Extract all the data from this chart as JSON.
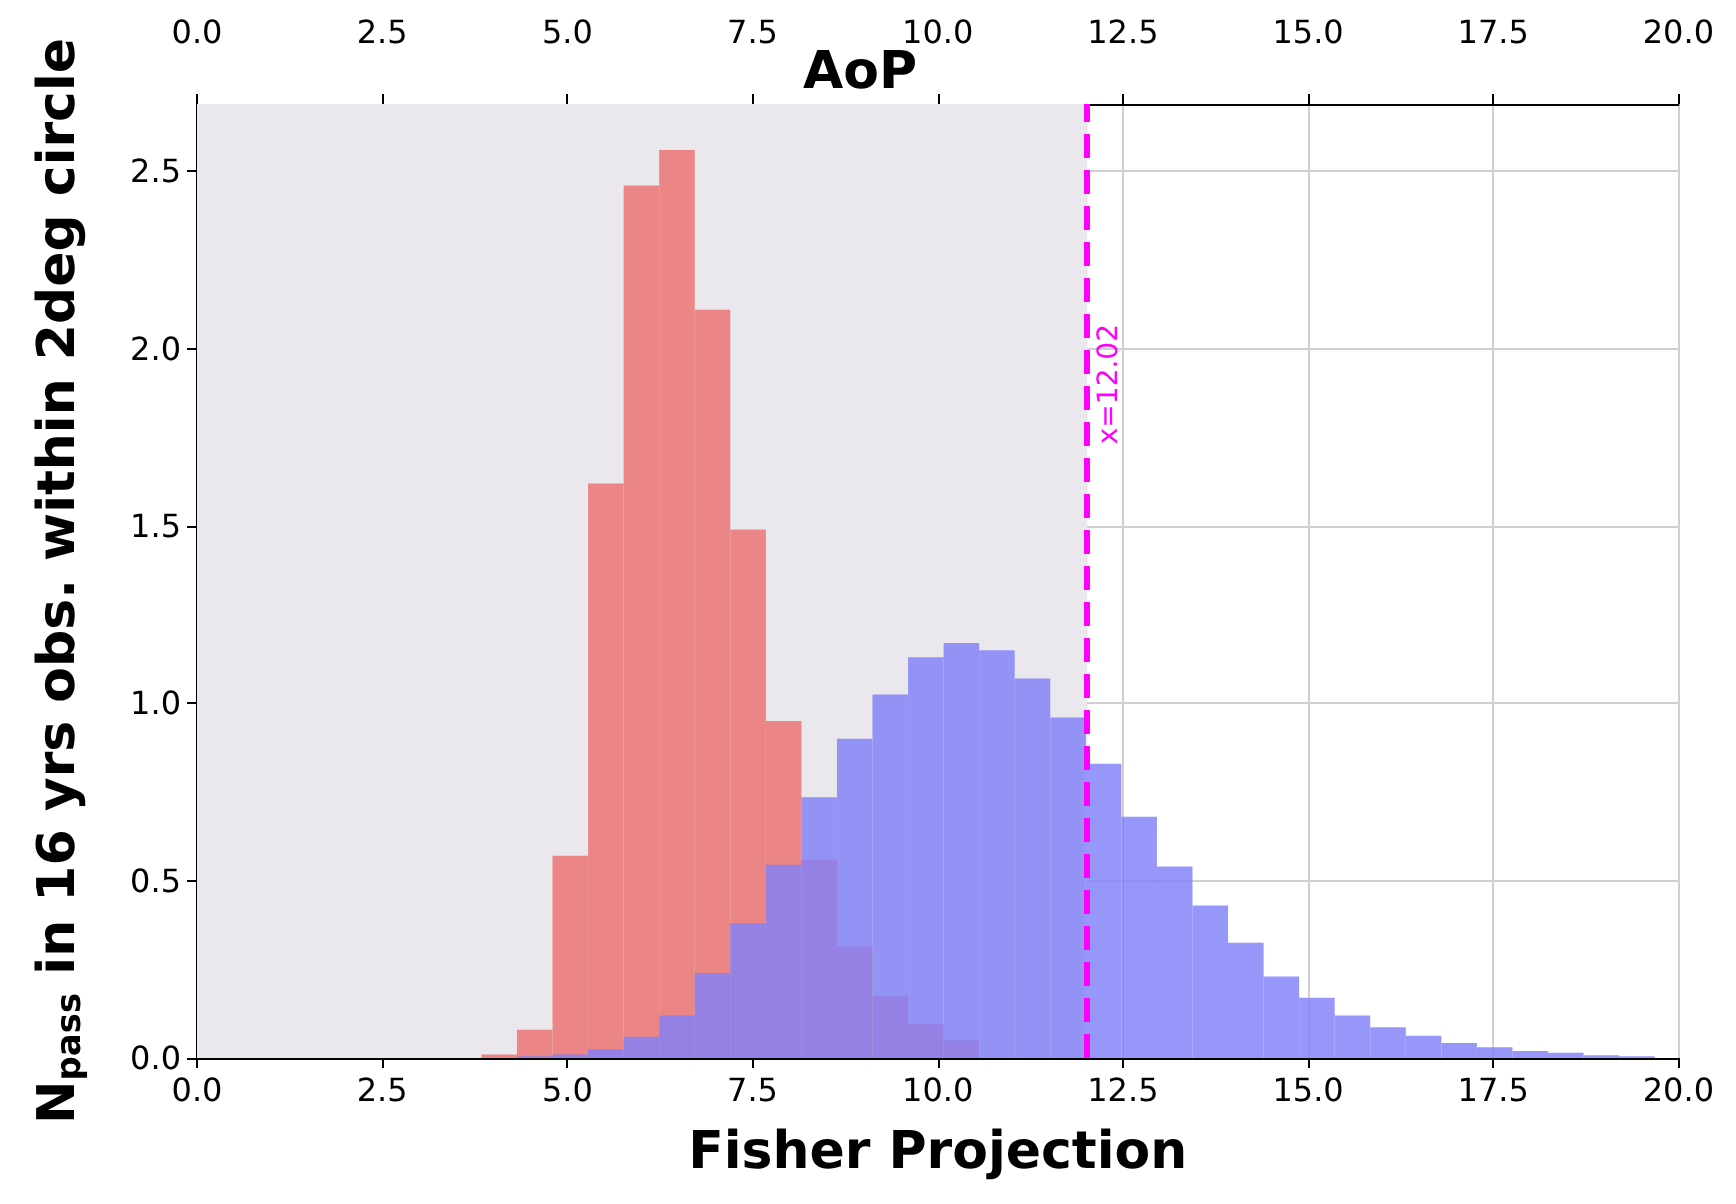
{
  "chart_data": {
    "type": "histogram",
    "title": "AoP",
    "xlabel": "Fisher Projection",
    "ylabel": "N$_{pass}$ in 16 yrs obs. within 2deg circle",
    "bins": [
      3.84,
      4.32,
      4.8,
      5.28,
      5.76,
      6.24,
      6.72,
      7.2,
      7.68,
      8.16,
      8.64,
      9.12,
      9.6,
      10.08,
      10.56,
      11.04,
      11.52,
      12.0,
      12.48,
      12.96,
      13.44,
      13.92,
      14.4,
      14.88,
      15.36,
      15.84,
      16.32,
      16.8,
      17.28,
      17.76,
      18.24,
      18.72,
      19.2,
      19.68
    ],
    "series": [
      {
        "color": "#ec8585",
        "values": [
          0.01,
          0.08,
          0.57,
          1.62,
          2.46,
          2.56,
          2.11,
          1.49,
          0.95,
          0.56,
          0.315,
          0.174,
          0.096,
          0.05,
          null,
          null,
          null,
          null,
          0,
          0,
          0,
          0,
          0,
          0,
          0,
          0,
          0,
          0,
          0,
          0,
          0,
          0,
          0
        ]
      },
      {
        "color": "#8080f8",
        "values": [
          0,
          0.005,
          0.01,
          0.025,
          0.06,
          0.12,
          0.24,
          0.38,
          0.545,
          0.735,
          0.9,
          1.025,
          1.13,
          1.17,
          1.15,
          1.07,
          0.96,
          0.83,
          0.68,
          0.54,
          0.43,
          0.325,
          0.23,
          0.17,
          0.12,
          0.087,
          0.063,
          0.042,
          0.03,
          0.02,
          0.015,
          0.008,
          0.005
        ]
      }
    ],
    "xlim": [
      0,
      20
    ],
    "xticks": [
      {
        "value": 0,
        "label": "0.0"
      },
      2.5,
      {
        "value": 5,
        "label": "5.0"
      },
      7.5,
      {
        "value": 10,
        "label": "10.0"
      },
      12.5,
      {
        "value": 15,
        "label": "15.0"
      },
      17.5,
      {
        "value": 20,
        "label": "20.0"
      }
    ],
    "x2lim": [
      0,
      20
    ],
    "x2ticks": [
      {
        "value": 0,
        "label": "0.0"
      },
      2.5,
      {
        "value": 5,
        "label": "5.0"
      },
      7.5,
      {
        "value": 10,
        "label": "10.0"
      },
      12.5,
      {
        "value": 15,
        "label": "15.0"
      },
      17.5,
      {
        "value": 20,
        "label": "20.0"
      }
    ],
    "ylim": [
      0,
      2.69
    ],
    "yticks": [
      {
        "value": 0,
        "label": "0.0"
      },
      0.5,
      {
        "value": 1,
        "label": "1.0"
      },
      1.5,
      {
        "value": 2,
        "label": "2.0"
      },
      2.5
    ],
    "ref_lines": [
      {
        "axis": "x",
        "value": 12.02,
        "label": "x=12.02",
        "color": "#ff00ff",
        "line_style": "dashed"
      }
    ],
    "bands": [
      {
        "axis": "x",
        "from": 0,
        "to": 12.02,
        "color": "#eae8ec"
      }
    ],
    "grid": true
  }
}
